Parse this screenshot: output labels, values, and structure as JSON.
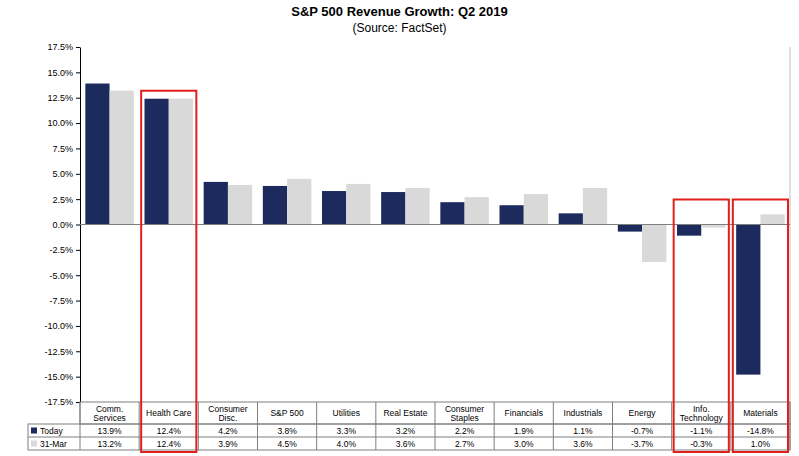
{
  "chart_data": {
    "type": "bar",
    "title": "S&P 500 Revenue Growth: Q2 2019",
    "subtitle": "(Source: FactSet)",
    "categories": [
      "Comm. Services",
      "Health Care",
      "Consumer Disc.",
      "S&P 500",
      "Utilities",
      "Real Estate",
      "Consumer Staples",
      "Financials",
      "Industrials",
      "Energy",
      "Info. Technology",
      "Materials"
    ],
    "series": [
      {
        "name": "Today",
        "color": "#1c2a5e",
        "values": [
          13.9,
          12.4,
          4.2,
          3.8,
          3.3,
          3.2,
          2.2,
          1.9,
          1.1,
          -0.7,
          -1.1,
          -14.8
        ],
        "value_labels": [
          "13.9%",
          "12.4%",
          "4.2%",
          "3.8%",
          "3.3%",
          "3.2%",
          "2.2%",
          "1.9%",
          "1.1%",
          "-0.7%",
          "-1.1%",
          "-14.8%"
        ]
      },
      {
        "name": "31-Mar",
        "color": "#d9d9d9",
        "values": [
          13.2,
          12.4,
          3.9,
          4.5,
          4.0,
          3.6,
          2.7,
          3.0,
          3.6,
          -3.7,
          -0.3,
          1.0
        ],
        "value_labels": [
          "13.2%",
          "12.4%",
          "3.9%",
          "4.5%",
          "4.0%",
          "3.6%",
          "2.7%",
          "3.0%",
          "3.6%",
          "-3.7%",
          "-0.3%",
          "1.0%"
        ]
      }
    ],
    "highlighted": [
      "Health Care",
      "Info. Technology",
      "Materials"
    ],
    "ylim": [
      -17.5,
      17.5
    ],
    "yticks": [
      {
        "value": -17.5,
        "label": "-17.5%"
      },
      {
        "value": -15,
        "label": "-15.0%"
      },
      {
        "value": -12.5,
        "label": "-12.5%"
      },
      {
        "value": -10,
        "label": "-10.0%"
      },
      {
        "value": -7.5,
        "label": "-7.5%"
      },
      {
        "value": -5,
        "label": "-5.0%"
      },
      {
        "value": -2.5,
        "label": "-2.5%"
      },
      {
        "value": 0,
        "label": "0.0%"
      },
      {
        "value": 2.5,
        "label": "2.5%"
      },
      {
        "value": 5,
        "label": "5.0%"
      },
      {
        "value": 7.5,
        "label": "7.5%"
      },
      {
        "value": 10,
        "label": "10.0%"
      },
      {
        "value": 12.5,
        "label": "12.5%"
      },
      {
        "value": 15,
        "label": "15.0%"
      },
      {
        "value": 17.5,
        "label": "17.5%"
      }
    ],
    "grid": false
  }
}
